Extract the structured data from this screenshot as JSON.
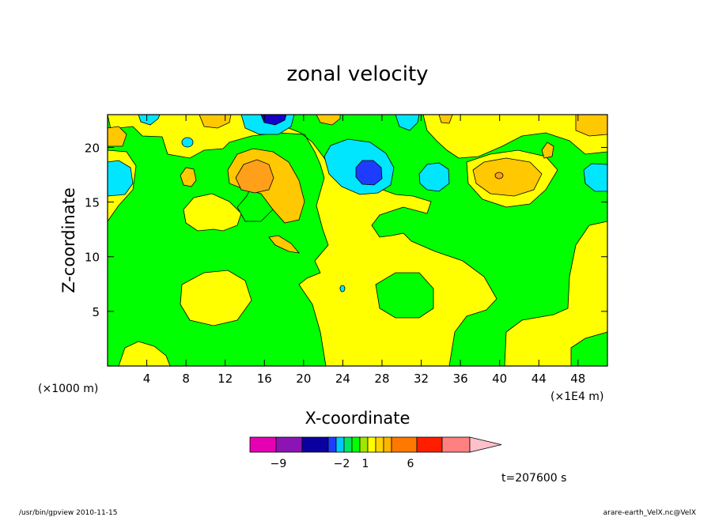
{
  "chart_data": {
    "type": "heatmap",
    "title": "zonal velocity",
    "xlabel": "X-coordinate",
    "ylabel": "Z-coordinate",
    "x_ticks": [
      4,
      8,
      12,
      16,
      20,
      24,
      28,
      32,
      36,
      40,
      44,
      48
    ],
    "y_ticks": [
      5,
      10,
      15,
      20
    ],
    "xlim": [
      0,
      51
    ],
    "ylim": [
      0,
      23
    ],
    "x_unit_left": "(×1000 m)",
    "x_unit_right": "(×1E4 m)",
    "colorbar": {
      "colors": [
        "#e600b4",
        "#8c14b4",
        "#0a00a0",
        "#1e3cff",
        "#00c8ff",
        "#00e664",
        "#00ff00",
        "#a0e600",
        "#ffff00",
        "#ffd200",
        "#ffb400",
        "#ff7800",
        "#ff1e00",
        "#ff8080",
        "#ffc0cb"
      ],
      "labels": [
        "-9",
        "-2",
        "1",
        "6"
      ]
    },
    "fields": {
      "background": "#00ff00",
      "yellow": "#ffff00",
      "light_orange": "#ffc800",
      "orange": "#ff9f1a",
      "cyan": "#00e6ff",
      "blue": "#1e3cff",
      "navy": "#1400c8"
    },
    "time_label": "t=207600 s",
    "footer_left": "/usr/bin/gpview   2010-11-15",
    "footer_right": "arare-earth_VelX.nc@VelX"
  }
}
